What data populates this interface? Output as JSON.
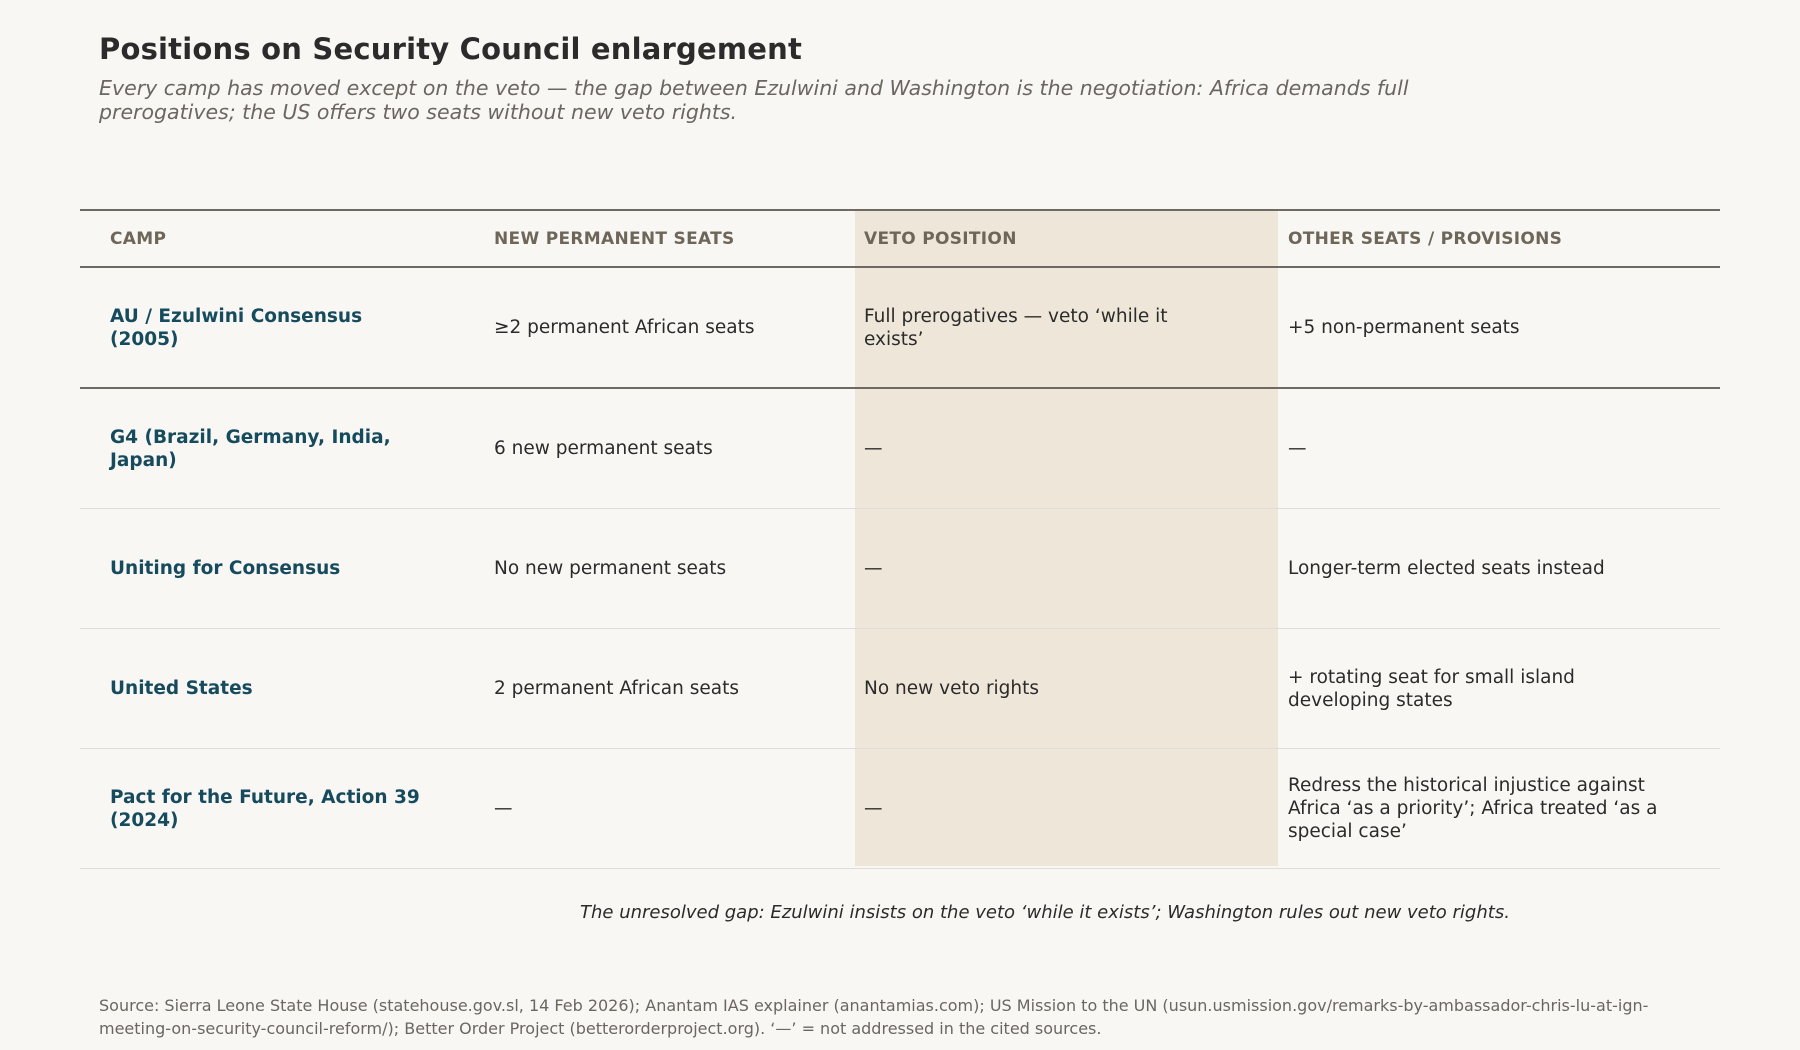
{
  "title": "Positions on Security Council enlargement",
  "subtitle": "Every camp has moved except on the veto — the gap between Ezulwini and Washington is the negotiation: Africa demands full prerogatives; the US offers two seats without new veto rights.",
  "table": {
    "headers": [
      "CAMP",
      "NEW PERMANENT SEATS",
      "VETO POSITION",
      "OTHER SEATS / PROVISIONS"
    ],
    "highlight_color": "#eee7d9",
    "camp_color": "#164b5e",
    "rows": [
      {
        "camp": "AU / Ezulwini Consensus (2005)",
        "permanent": "≥2 permanent African seats",
        "veto": "Full prerogatives — veto ‘while it exists’",
        "other": "+5 non-permanent seats"
      },
      {
        "camp": "G4 (Brazil, Germany, India, Japan)",
        "permanent": "6 new permanent seats",
        "veto": "—",
        "other": "—"
      },
      {
        "camp": "Uniting for Consensus",
        "permanent": "No new permanent seats",
        "veto": "—",
        "other": "Longer-term elected seats instead"
      },
      {
        "camp": "United States",
        "permanent": "2 permanent African seats",
        "veto": "No new veto rights",
        "other": "+ rotating seat for small island developing states"
      },
      {
        "camp": "Pact for the Future, Action 39 (2024)",
        "permanent": "—",
        "veto": "—",
        "other": "Redress the historical injustice against Africa ‘as a priority’; Africa treated ‘as a special case’"
      }
    ]
  },
  "note": "The unresolved gap: Ezulwini insists on the veto ‘while it exists’; Washington rules out new veto rights.",
  "source": "Source: Sierra Leone State House (statehouse.gov.sl, 14 Feb 2026); Anantam IAS explainer (anantamias.com); US Mission to the UN (usun.usmission.gov/remarks-by-ambassador-chris-lu-at-ign-meeting-on-security-council-reform/); Better Order Project (betterorderproject.org). ‘—’ = not addressed in the cited sources."
}
